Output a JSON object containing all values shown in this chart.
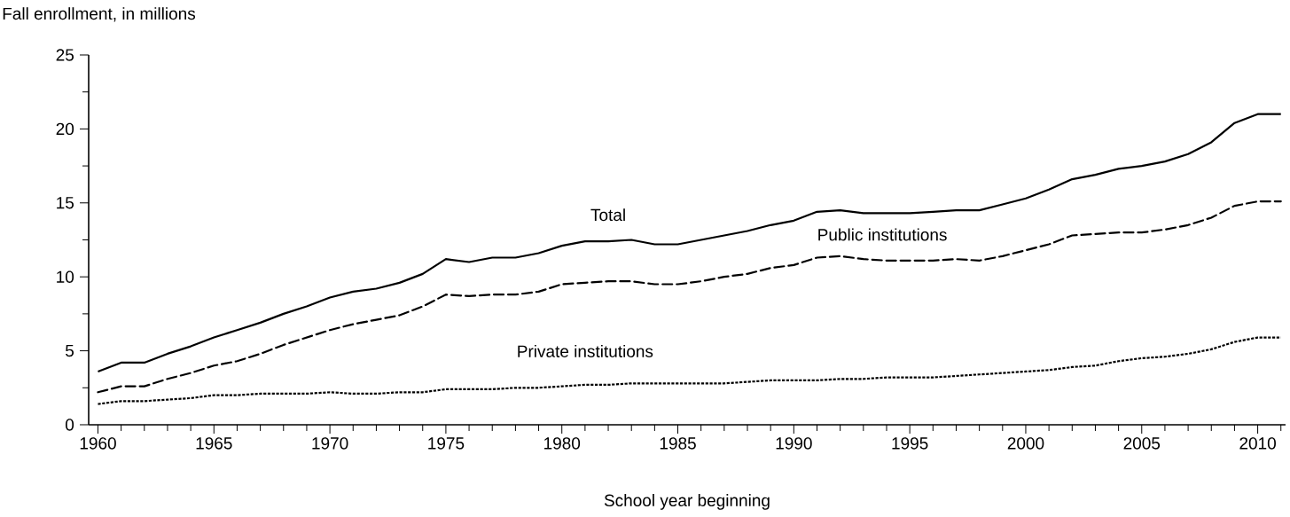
{
  "chart_data": {
    "type": "line",
    "ylabel": "Fall enrollment, in millions",
    "xlabel": "School year beginning",
    "x": [
      1960,
      1961,
      1962,
      1963,
      1964,
      1965,
      1966,
      1967,
      1968,
      1969,
      1970,
      1971,
      1972,
      1973,
      1974,
      1975,
      1976,
      1977,
      1978,
      1979,
      1980,
      1981,
      1982,
      1983,
      1984,
      1985,
      1986,
      1987,
      1988,
      1989,
      1990,
      1991,
      1992,
      1993,
      1994,
      1995,
      1996,
      1997,
      1998,
      1999,
      2000,
      2001,
      2002,
      2003,
      2004,
      2005,
      2006,
      2007,
      2008,
      2009,
      2010,
      2011
    ],
    "series": [
      {
        "name": "Total",
        "color": "#000000",
        "line_style": "solid",
        "values": [
          3.6,
          4.2,
          4.2,
          4.8,
          5.3,
          5.9,
          6.4,
          6.9,
          7.5,
          8.0,
          8.6,
          9.0,
          9.2,
          9.6,
          10.2,
          11.2,
          11.0,
          11.3,
          11.3,
          11.6,
          12.1,
          12.4,
          12.4,
          12.5,
          12.2,
          12.2,
          12.5,
          12.8,
          13.1,
          13.5,
          13.8,
          14.4,
          14.5,
          14.3,
          14.3,
          14.3,
          14.4,
          14.5,
          14.5,
          14.9,
          15.3,
          15.9,
          16.6,
          16.9,
          17.3,
          17.5,
          17.8,
          18.3,
          19.1,
          20.4,
          21.0,
          21.0
        ]
      },
      {
        "name": "Public institutions",
        "color": "#000000",
        "line_style": "dashed",
        "values": [
          2.2,
          2.6,
          2.6,
          3.1,
          3.5,
          4.0,
          4.3,
          4.8,
          5.4,
          5.9,
          6.4,
          6.8,
          7.1,
          7.4,
          8.0,
          8.8,
          8.7,
          8.8,
          8.8,
          9.0,
          9.5,
          9.6,
          9.7,
          9.7,
          9.5,
          9.5,
          9.7,
          10.0,
          10.2,
          10.6,
          10.8,
          11.3,
          11.4,
          11.2,
          11.1,
          11.1,
          11.1,
          11.2,
          11.1,
          11.4,
          11.8,
          12.2,
          12.8,
          12.9,
          13.0,
          13.0,
          13.2,
          13.5,
          14.0,
          14.8,
          15.1,
          15.1
        ]
      },
      {
        "name": "Private institutions",
        "color": "#000000",
        "line_style": "dotted",
        "values": [
          1.4,
          1.6,
          1.6,
          1.7,
          1.8,
          2.0,
          2.0,
          2.1,
          2.1,
          2.1,
          2.2,
          2.1,
          2.1,
          2.2,
          2.2,
          2.4,
          2.4,
          2.4,
          2.5,
          2.5,
          2.6,
          2.7,
          2.7,
          2.8,
          2.8,
          2.8,
          2.8,
          2.8,
          2.9,
          3.0,
          3.0,
          3.0,
          3.1,
          3.1,
          3.2,
          3.2,
          3.2,
          3.3,
          3.4,
          3.5,
          3.6,
          3.7,
          3.9,
          4.0,
          4.3,
          4.5,
          4.6,
          4.8,
          5.1,
          5.6,
          5.9,
          5.9
        ]
      }
    ],
    "xlim": [
      1959.6,
      2011.2
    ],
    "ylim": [
      0,
      25
    ],
    "xticks": [
      1960,
      {
        "value": 1961,
        "label": null
      },
      {
        "value": 1962,
        "label": null
      },
      {
        "value": 1963,
        "label": null
      },
      {
        "value": 1964,
        "label": null
      },
      1965,
      {
        "value": 1966,
        "label": null
      },
      {
        "value": 1967,
        "label": null
      },
      {
        "value": 1968,
        "label": null
      },
      {
        "value": 1969,
        "label": null
      },
      1970,
      {
        "value": 1971,
        "label": null
      },
      {
        "value": 1972,
        "label": null
      },
      {
        "value": 1973,
        "label": null
      },
      {
        "value": 1974,
        "label": null
      },
      1975,
      {
        "value": 1976,
        "label": null
      },
      {
        "value": 1977,
        "label": null
      },
      {
        "value": 1978,
        "label": null
      },
      {
        "value": 1979,
        "label": null
      },
      1980,
      {
        "value": 1981,
        "label": null
      },
      {
        "value": 1982,
        "label": null
      },
      {
        "value": 1983,
        "label": null
      },
      {
        "value": 1984,
        "label": null
      },
      1985,
      {
        "value": 1986,
        "label": null
      },
      {
        "value": 1987,
        "label": null
      },
      {
        "value": 1988,
        "label": null
      },
      {
        "value": 1989,
        "label": null
      },
      1990,
      {
        "value": 1991,
        "label": null
      },
      {
        "value": 1992,
        "label": null
      },
      {
        "value": 1993,
        "label": null
      },
      {
        "value": 1994,
        "label": null
      },
      1995,
      {
        "value": 1996,
        "label": null
      },
      {
        "value": 1997,
        "label": null
      },
      {
        "value": 1998,
        "label": null
      },
      {
        "value": 1999,
        "label": null
      },
      2000,
      {
        "value": 2001,
        "label": null
      },
      {
        "value": 2002,
        "label": null
      },
      {
        "value": 2003,
        "label": null
      },
      {
        "value": 2004,
        "label": null
      },
      2005,
      {
        "value": 2006,
        "label": null
      },
      {
        "value": 2007,
        "label": null
      },
      {
        "value": 2008,
        "label": null
      },
      {
        "value": 2009,
        "label": null
      },
      2010,
      {
        "value": 2011,
        "label": null
      }
    ],
    "yticks": [
      0,
      {
        "value": 2.5,
        "label": null
      },
      5,
      {
        "value": 7.5,
        "label": null
      },
      10,
      {
        "value": 12.5,
        "label": null
      },
      15,
      {
        "value": 17.5,
        "label": null
      },
      20,
      {
        "value": 22.5,
        "label": null
      },
      25
    ]
  }
}
